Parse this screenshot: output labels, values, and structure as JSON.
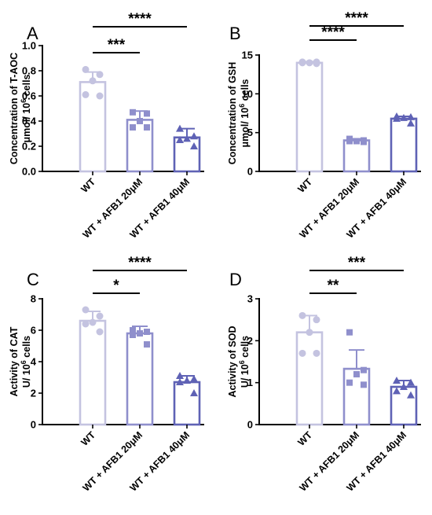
{
  "colors": [
    "#c4c3e0",
    "#8f8fcc",
    "#5f62b5"
  ],
  "chart_data": [
    {
      "type": "bar",
      "panel_label": "A",
      "ylabel_lines": [
        "Concentration of  T-AOC",
        "μmol/ 10<sup>6</sup> cells"
      ],
      "categories": [
        "WT",
        "WT + AFB1 20μM",
        "WT + AFB1 40μM"
      ],
      "ylim": [
        0,
        1.0
      ],
      "yticks": [
        0.0,
        0.2,
        0.4,
        0.6,
        0.8,
        1.0
      ],
      "ytick_labels": [
        "0.0",
        "0.2",
        "0.4",
        "0.6",
        "0.8",
        "1.0"
      ],
      "values": [
        0.71,
        0.41,
        0.27
      ],
      "sd": [
        0.08,
        0.07,
        0.07
      ],
      "points": [
        [
          0.81,
          0.77,
          0.72,
          0.61,
          0.6
        ],
        [
          0.47,
          0.46,
          0.4,
          0.35,
          0.35
        ],
        [
          0.34,
          0.28,
          0.26,
          0.25,
          0.2
        ]
      ],
      "markers": [
        "circle",
        "square",
        "triangle"
      ],
      "significance": [
        {
          "from": 0,
          "to": 1,
          "label": "***"
        },
        {
          "from": 0,
          "to": 2,
          "label": "****"
        }
      ]
    },
    {
      "type": "bar",
      "panel_label": "B",
      "ylabel_lines": [
        "Concentration of  GSH",
        "μmol/ 10<sup>6</sup> cells"
      ],
      "categories": [
        "WT",
        "WT + AFB1 20μM",
        "WT + AFB1 40μM"
      ],
      "ylim": [
        0,
        15
      ],
      "yticks": [
        0,
        5,
        10,
        15
      ],
      "ytick_labels": [
        "0",
        "5",
        "10",
        "15"
      ],
      "values": [
        14.0,
        4.0,
        6.8
      ],
      "sd": [
        0.15,
        0.2,
        0.3
      ],
      "points": [
        [
          14.1,
          14.1,
          14.0,
          14.0,
          13.9
        ],
        [
          4.2,
          4.0,
          3.9,
          3.9,
          3.8
        ],
        [
          7.1,
          7.0,
          6.9,
          6.8,
          6.2
        ]
      ],
      "markers": [
        "circle",
        "square",
        "triangle"
      ],
      "significance": [
        {
          "from": 0,
          "to": 1,
          "label": "****"
        },
        {
          "from": 0,
          "to": 2,
          "label": "****"
        }
      ]
    },
    {
      "type": "bar",
      "panel_label": "C",
      "ylabel_lines": [
        "Activity of  CAT",
        "U/ 10<sup>6</sup> cells"
      ],
      "categories": [
        "WT",
        "WT + AFB1 20μM",
        "WT + AFB1 40μM"
      ],
      "ylim": [
        0,
        8
      ],
      "yticks": [
        0,
        2,
        4,
        6,
        8
      ],
      "ytick_labels": [
        "0",
        "2",
        "4",
        "6",
        "8"
      ],
      "values": [
        6.6,
        5.8,
        2.7
      ],
      "sd": [
        0.6,
        0.45,
        0.4
      ],
      "points": [
        [
          7.3,
          6.9,
          6.5,
          6.4,
          5.9
        ],
        [
          6.0,
          5.9,
          5.8,
          5.7,
          5.1
        ],
        [
          3.1,
          2.9,
          2.8,
          2.7,
          2.0
        ]
      ],
      "markers": [
        "circle",
        "square",
        "triangle"
      ],
      "significance": [
        {
          "from": 0,
          "to": 1,
          "label": "*"
        },
        {
          "from": 0,
          "to": 2,
          "label": "****"
        }
      ]
    },
    {
      "type": "bar",
      "panel_label": "D",
      "ylabel_lines": [
        "Activity of  SOD",
        "U/ 10<sup>6</sup> cells"
      ],
      "categories": [
        "WT",
        "WT + AFB1 20μM",
        "WT + AFB1 40μM"
      ],
      "ylim": [
        0,
        3
      ],
      "yticks": [
        0,
        1,
        2,
        3
      ],
      "ytick_labels": [
        "0",
        "1",
        "2",
        "3"
      ],
      "values": [
        2.2,
        1.33,
        0.9
      ],
      "sd": [
        0.4,
        0.45,
        0.15
      ],
      "points": [
        [
          2.6,
          2.5,
          2.2,
          1.7,
          1.7
        ],
        [
          2.2,
          1.3,
          1.2,
          1.0,
          0.95
        ],
        [
          1.05,
          1.0,
          0.9,
          0.8,
          0.7
        ]
      ],
      "markers": [
        "circle",
        "square",
        "triangle"
      ],
      "significance": [
        {
          "from": 0,
          "to": 1,
          "label": "**"
        },
        {
          "from": 0,
          "to": 2,
          "label": "***"
        }
      ]
    }
  ]
}
